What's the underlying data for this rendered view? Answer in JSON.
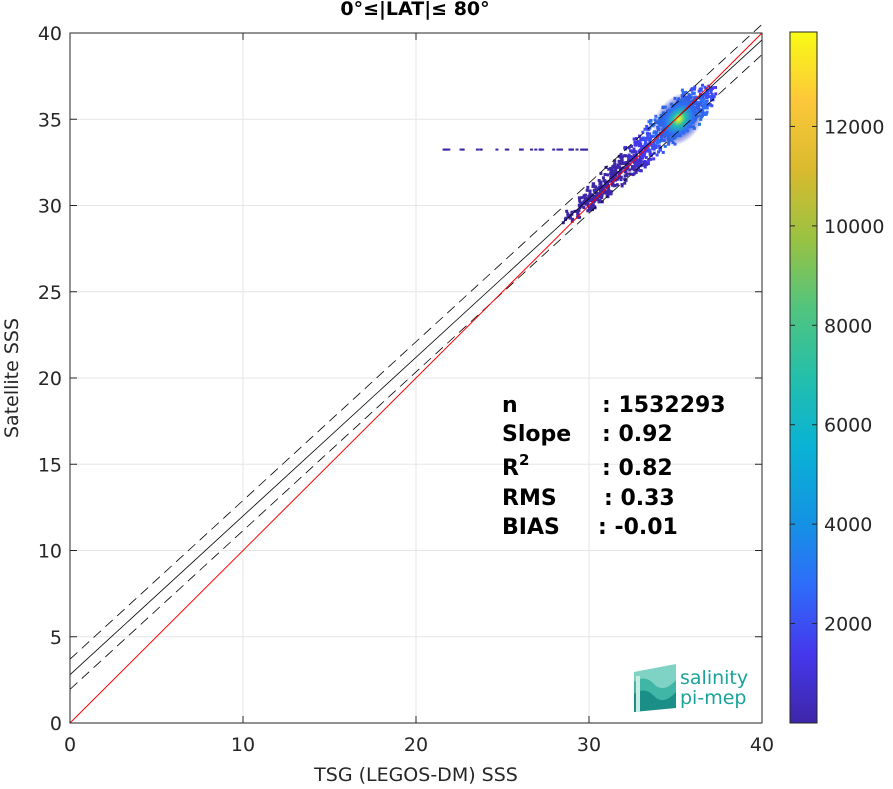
{
  "chart_data": {
    "type": "heatmap",
    "title": "0°≤|LAT|≤ 80°",
    "xlabel": "TSG (LEGOS-DM) SSS",
    "ylabel": "Satellite SSS",
    "xlim": [
      0,
      40
    ],
    "ylim": [
      0,
      40
    ],
    "xticks": [
      0,
      10,
      20,
      30,
      40
    ],
    "yticks": [
      0,
      5,
      10,
      15,
      20,
      25,
      30,
      35,
      40
    ],
    "grid": true,
    "reference_lines": {
      "identity": {
        "slope": 1.0,
        "intercept": 0.0,
        "color": "#ff0000"
      },
      "fit": {
        "slope": 0.92,
        "intercept": 2.8,
        "color": "#000000"
      },
      "fit_lower": {
        "slope": 0.92,
        "intercept": 1.95,
        "style": "dashed"
      },
      "fit_upper": {
        "slope": 0.92,
        "intercept": 3.7,
        "style": "dashed"
      }
    },
    "density_core": {
      "peak": {
        "x": 35.2,
        "y": 35.0
      },
      "ridge_start": {
        "x": 28.8,
        "y": 29.3
      },
      "ridge_end": {
        "x": 36.6,
        "y": 36.6
      },
      "sparse_strip_y": 33.3,
      "sparse_strip_x": [
        21.5,
        30.0
      ]
    },
    "colorbar": {
      "min": 0,
      "max": 13900,
      "ticks": [
        2000,
        4000,
        6000,
        8000,
        10000,
        12000
      ],
      "colormap": "parula"
    },
    "stats": [
      {
        "label": "n",
        "value": ": 1532293"
      },
      {
        "label": "Slope",
        "value": ": 0.92"
      },
      {
        "label": "R",
        "sup": "2",
        "value": ": 0.82"
      },
      {
        "label": "RMS",
        "value": ": 0.33"
      },
      {
        "label": "BIAS",
        "value": ": -0.01"
      }
    ]
  },
  "logo": {
    "line1": "salinity",
    "line2": "pi-mep"
  },
  "colors": {
    "identity": "#ff0000",
    "fit": "#000000",
    "grid": "#e6e6e6",
    "logo": "#1aa39a"
  }
}
